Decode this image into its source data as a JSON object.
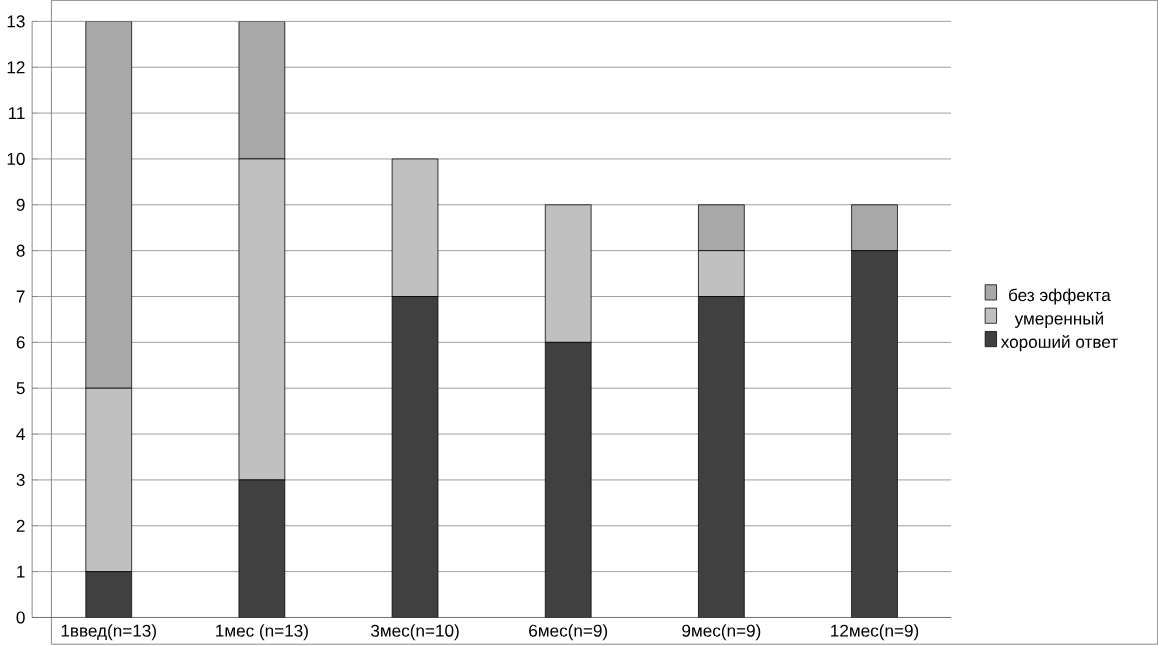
{
  "chart_data": {
    "type": "bar",
    "stacked": true,
    "categories": [
      "1введ(n=13)",
      "1мес (n=13)",
      "3мес(n=10)",
      "6мес(n=9)",
      "9мес(n=9)",
      "12мес(n=9)"
    ],
    "series": [
      {
        "name": "хороший ответ",
        "color": "#404040",
        "values": [
          1,
          3,
          7,
          6,
          7,
          8
        ]
      },
      {
        "name": "умеренный",
        "color": "#c0c0c0",
        "values": [
          4,
          7,
          3,
          3,
          1,
          0
        ]
      },
      {
        "name": "без эффекта",
        "color": "#a8a8a8",
        "values": [
          8,
          3,
          0,
          0,
          1,
          1
        ]
      }
    ],
    "ylim": [
      0,
      13
    ],
    "yticks": [
      0,
      1,
      2,
      3,
      4,
      5,
      6,
      7,
      8,
      9,
      10,
      11,
      12,
      13
    ],
    "grid": "y",
    "legend": "right"
  }
}
